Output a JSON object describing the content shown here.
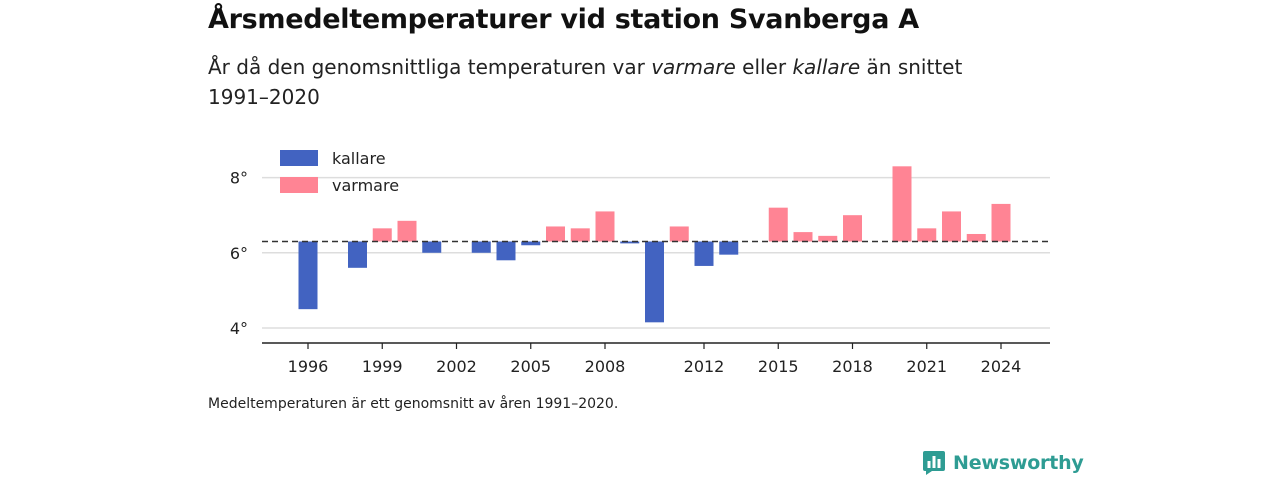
{
  "header": {
    "title": "Årsmedeltemperaturer vid station Svanberga A",
    "subtitle_part1": "År då den genomsnittliga temperaturen var ",
    "subtitle_warm": "varmare",
    "subtitle_part2": " eller ",
    "subtitle_cold": "kallare",
    "subtitle_part3": " än snittet 1991–2020"
  },
  "footer": {
    "note": "Medeltemperaturen är ett genomsnitt av åren 1991–2020.",
    "brand": "Newsworthy"
  },
  "colors": {
    "cold": "#4263c1",
    "warm": "#ff8494",
    "baseline": "#333333",
    "grid": "#dddddd",
    "brand": "#2e9c93"
  },
  "chart_data": {
    "type": "bar",
    "baseline": 6.3,
    "ylim": [
      3.6,
      9.0
    ],
    "yticks": [
      4,
      6,
      8
    ],
    "ytick_labels": [
      "4°",
      "6°",
      "8°"
    ],
    "xticks": [
      1996,
      1999,
      2002,
      2005,
      2008,
      2012,
      2015,
      2018,
      2021,
      2024
    ],
    "legend": {
      "position": "top-left",
      "entries": [
        {
          "label": "kallare",
          "color": "#4263c1"
        },
        {
          "label": "varmare",
          "color": "#ff8494"
        }
      ]
    },
    "grid": true,
    "years": [
      1996,
      1997,
      1998,
      1999,
      2000,
      2001,
      2002,
      2003,
      2004,
      2005,
      2006,
      2007,
      2008,
      2009,
      2010,
      2011,
      2012,
      2013,
      2014,
      2015,
      2016,
      2017,
      2018,
      2019,
      2020,
      2021,
      2022,
      2023,
      2024
    ],
    "values": [
      4.5,
      null,
      5.6,
      6.65,
      6.85,
      6.0,
      null,
      6.0,
      5.8,
      6.2,
      6.7,
      6.65,
      7.1,
      6.25,
      4.15,
      6.7,
      5.65,
      5.95,
      null,
      7.2,
      6.55,
      6.45,
      7.0,
      null,
      8.3,
      6.65,
      7.1,
      6.5,
      7.3
    ]
  }
}
